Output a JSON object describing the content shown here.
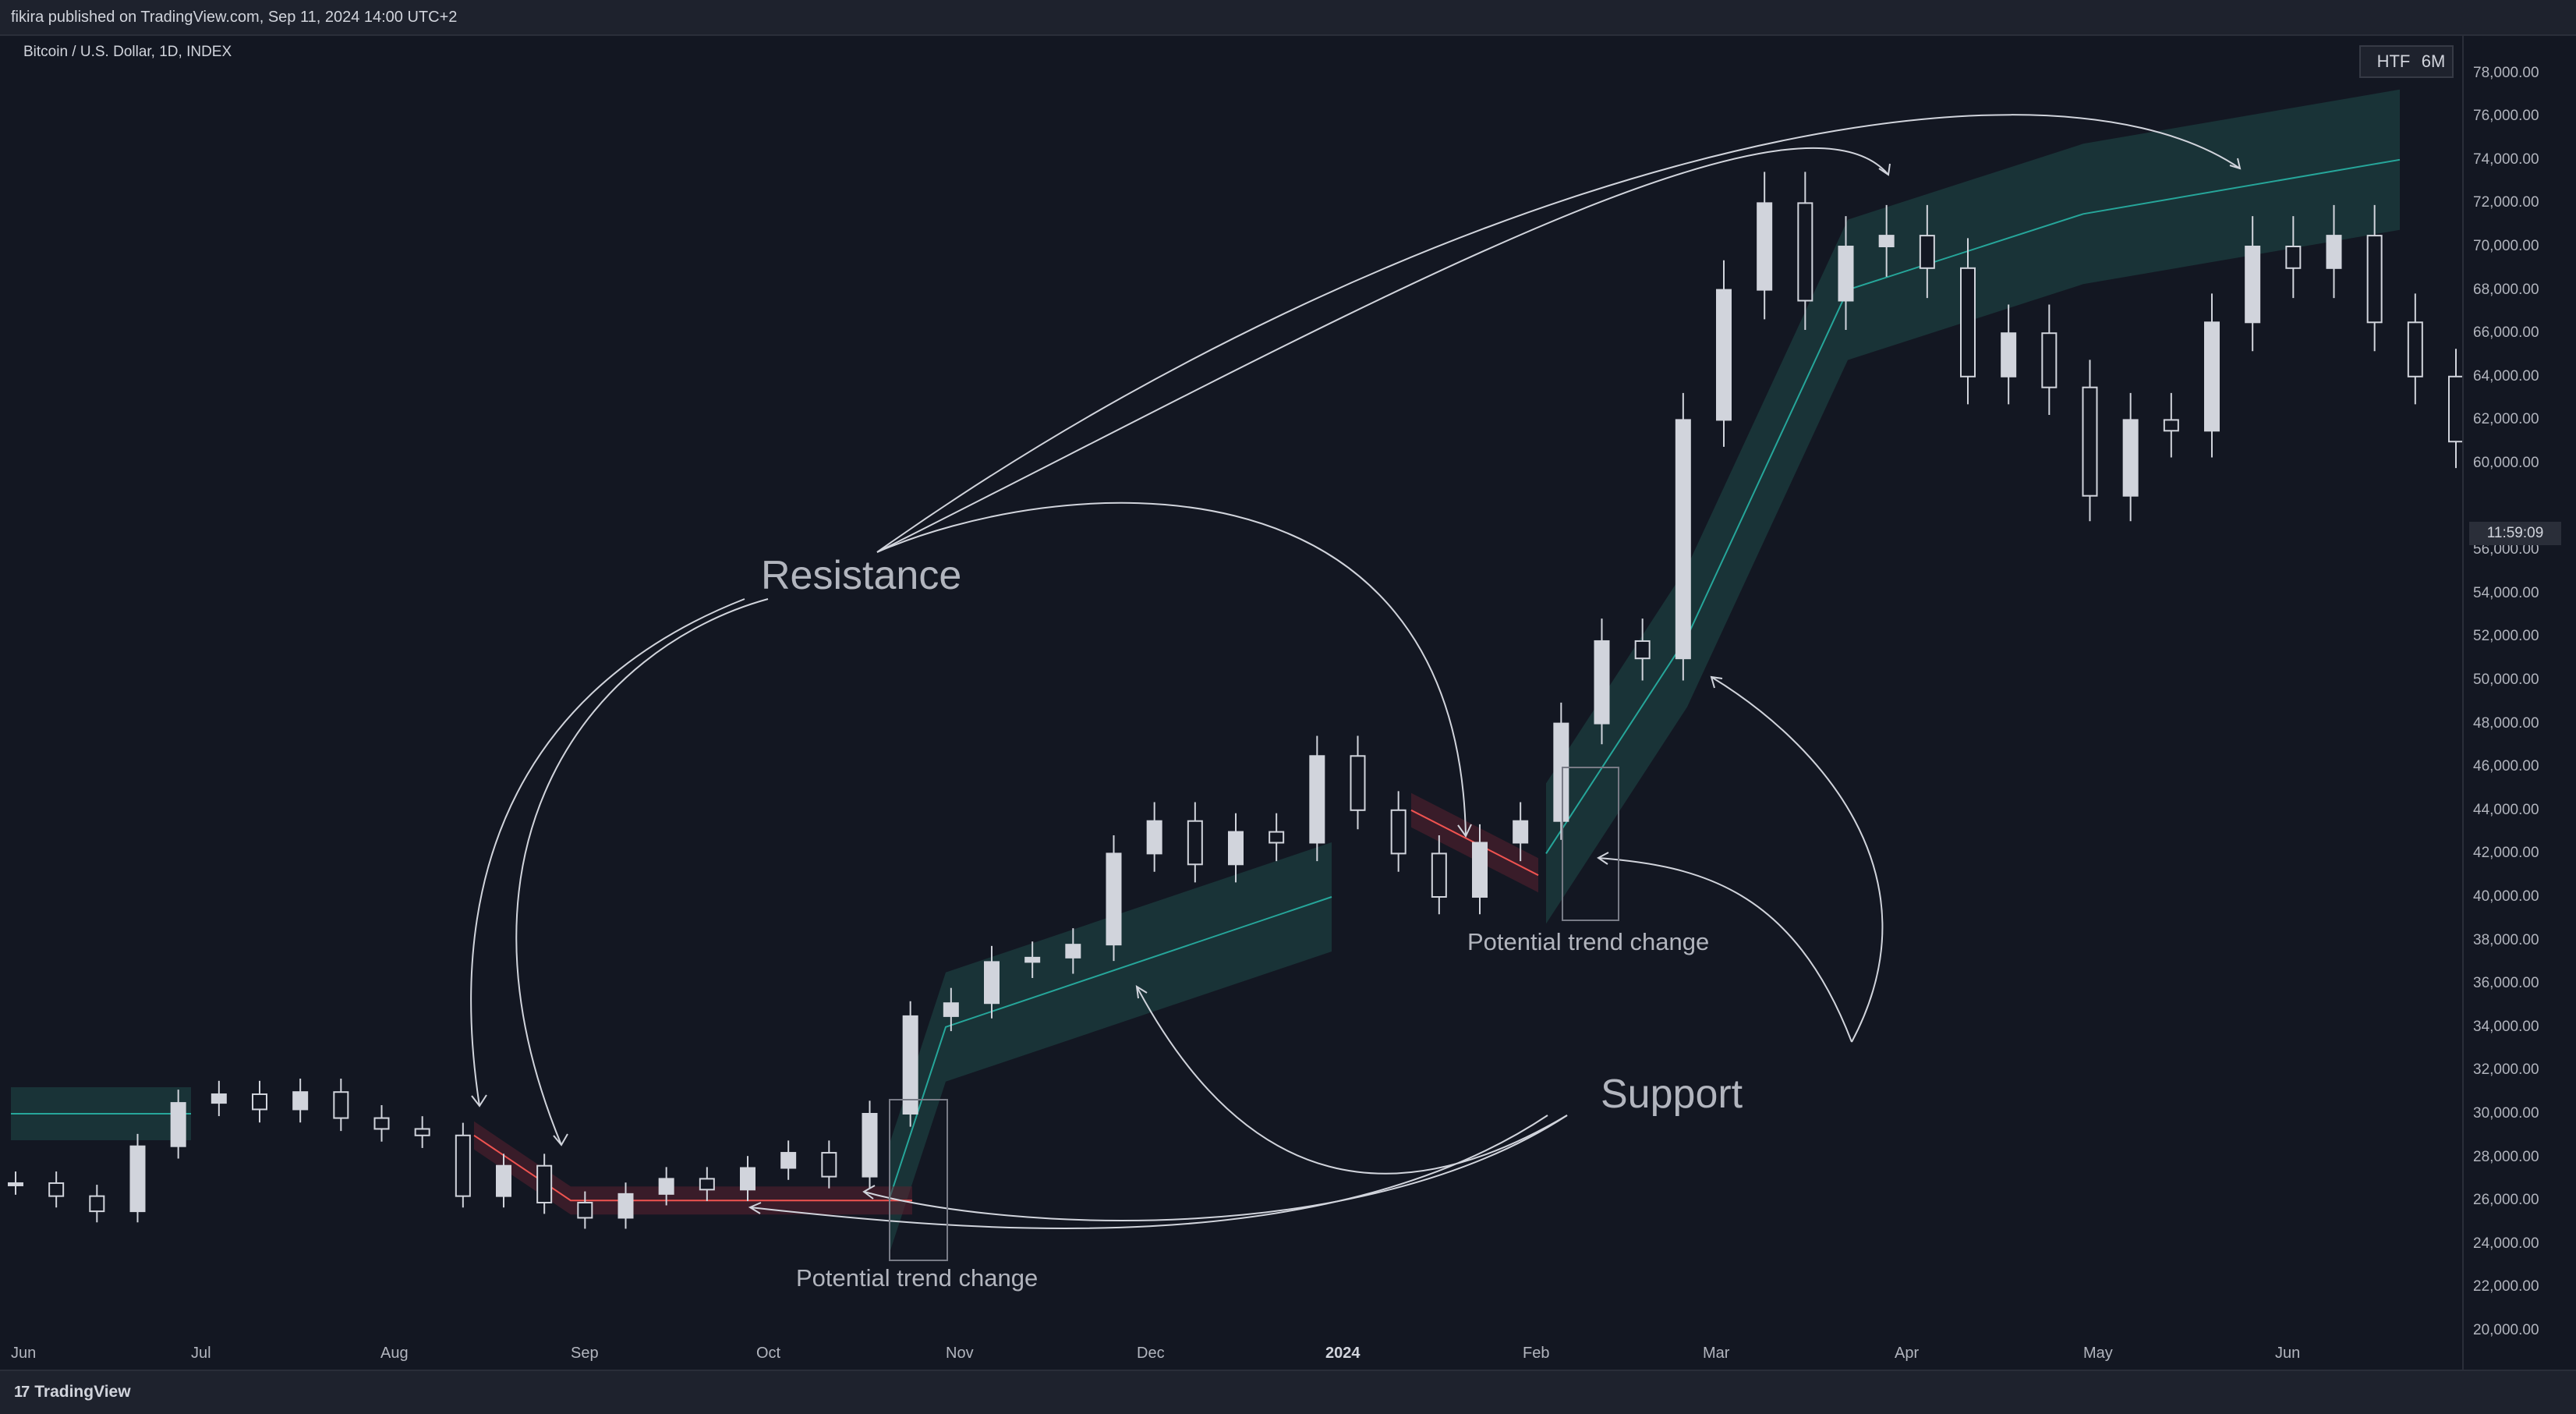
{
  "header": {
    "published": "fikira published on TradingView.com, Sep 11, 2024 14:00 UTC+2"
  },
  "chart": {
    "symbol": "Bitcoin / U.S. Dollar, 1D, INDEX",
    "timeframe_buttons": [
      "HTF",
      "6M"
    ],
    "countdown": "11:59:09",
    "price_labels": [
      "78,000.00",
      "76,000.00",
      "74,000.00",
      "72,000.00",
      "70,000.00",
      "68,000.00",
      "66,000.00",
      "64,000.00",
      "62,000.00",
      "60,000.00",
      "56,000.00",
      "54,000.00",
      "52,000.00",
      "50,000.00",
      "48,000.00",
      "46,000.00",
      "44,000.00",
      "42,000.00",
      "40,000.00",
      "38,000.00",
      "36,000.00",
      "34,000.00",
      "32,000.00",
      "30,000.00",
      "28,000.00",
      "26,000.00",
      "24,000.00",
      "22,000.00",
      "20,000.00"
    ],
    "time_labels": [
      "Jun",
      "Jul",
      "Aug",
      "Sep",
      "Oct",
      "Nov",
      "Dec",
      "2024",
      "Feb",
      "Mar",
      "Apr",
      "May",
      "Jun"
    ],
    "colors": {
      "background": "#131722",
      "candle_body": "#d1d4dc",
      "bull_band": "#1f4a48",
      "bull_line": "#26a69a",
      "bear_band": "#5a2130",
      "bear_line": "#ef5350",
      "annotation": "#d1d4dc"
    }
  },
  "annotations": {
    "resistance": "Resistance",
    "support": "Support",
    "trend_change_1": "Potential trend change",
    "trend_change_2": "Potential trend change"
  },
  "footer": {
    "brand": "TradingView",
    "logo_glyph": "17"
  },
  "chart_data": {
    "type": "candlestick",
    "title": "Bitcoin / U.S. Dollar, 1D, INDEX",
    "ylim": [
      20000,
      78000
    ],
    "x": [
      "Jun",
      "Jul",
      "Aug",
      "Sep",
      "Oct",
      "Nov",
      "Dec",
      "2024",
      "Feb",
      "Mar",
      "Apr",
      "May",
      "Jun"
    ],
    "series": [
      {
        "name": "close",
        "points": [
          [
            "Jun",
            26800
          ],
          [
            "Jun",
            26200
          ],
          [
            "Jun",
            25500
          ],
          [
            "Jun",
            28500
          ],
          [
            "Jul",
            30500
          ],
          [
            "Jul",
            30900
          ],
          [
            "Jul",
            30200
          ],
          [
            "Jul",
            31000
          ],
          [
            "Aug",
            29800
          ],
          [
            "Aug",
            29300
          ],
          [
            "Aug",
            29000
          ],
          [
            "Aug",
            26200
          ],
          [
            "Sep",
            27600
          ],
          [
            "Sep",
            25900
          ],
          [
            "Sep",
            25200
          ],
          [
            "Sep",
            26300
          ],
          [
            "Sep",
            27000
          ],
          [
            "Oct",
            26500
          ],
          [
            "Oct",
            27500
          ],
          [
            "Oct",
            28200
          ],
          [
            "Oct",
            27100
          ],
          [
            "Oct",
            30000
          ],
          [
            "Nov",
            34500
          ],
          [
            "Nov",
            35100
          ],
          [
            "Nov",
            37000
          ],
          [
            "Nov",
            37200
          ],
          [
            "Nov",
            37800
          ],
          [
            "Dec",
            42000
          ],
          [
            "Dec",
            43500
          ],
          [
            "Dec",
            41500
          ],
          [
            "Dec",
            43000
          ],
          [
            "Dec",
            42500
          ],
          [
            "2024",
            46500
          ],
          [
            "2024",
            44000
          ],
          [
            "2024",
            42000
          ],
          [
            "2024",
            40000
          ],
          [
            "Feb",
            42500
          ],
          [
            "Feb",
            43500
          ],
          [
            "Feb",
            48000
          ],
          [
            "Feb",
            51800
          ],
          [
            "Feb",
            51000
          ],
          [
            "Mar",
            62000
          ],
          [
            "Mar",
            68000
          ],
          [
            "Mar",
            72000
          ],
          [
            "Mar",
            67500
          ],
          [
            "Mar",
            70000
          ],
          [
            "Apr",
            70500
          ],
          [
            "Apr",
            69000
          ],
          [
            "Apr",
            64000
          ],
          [
            "Apr",
            66000
          ],
          [
            "Apr",
            63500
          ],
          [
            "May",
            58500
          ],
          [
            "May",
            62000
          ],
          [
            "May",
            61500
          ],
          [
            "May",
            66500
          ],
          [
            "May",
            70000
          ],
          [
            "Jun",
            69000
          ],
          [
            "Jun",
            70500
          ],
          [
            "Jun",
            66500
          ],
          [
            "Jun",
            64000
          ],
          [
            "Jun",
            61000
          ]
        ]
      }
    ],
    "indicator": {
      "bull_midline_values": [
        [
          [
            "Jun",
            30000
          ],
          [
            "Jul",
            30000
          ]
        ],
        [
          [
            "Oct",
            26000
          ],
          [
            "Nov",
            34000
          ],
          [
            "Dec",
            40000
          ]
        ],
        [
          [
            "Feb",
            42000
          ],
          [
            "Mar",
            52000
          ],
          [
            "Apr",
            68000
          ],
          [
            "May",
            71500
          ],
          [
            "Jun",
            74000
          ]
        ]
      ],
      "bear_midline_values": [
        [
          [
            "Aug",
            29000
          ],
          [
            "Sep",
            26000
          ],
          [
            "Oct",
            26000
          ]
        ],
        [
          [
            "2024",
            44000
          ],
          [
            "Feb",
            41000
          ]
        ]
      ]
    }
  }
}
